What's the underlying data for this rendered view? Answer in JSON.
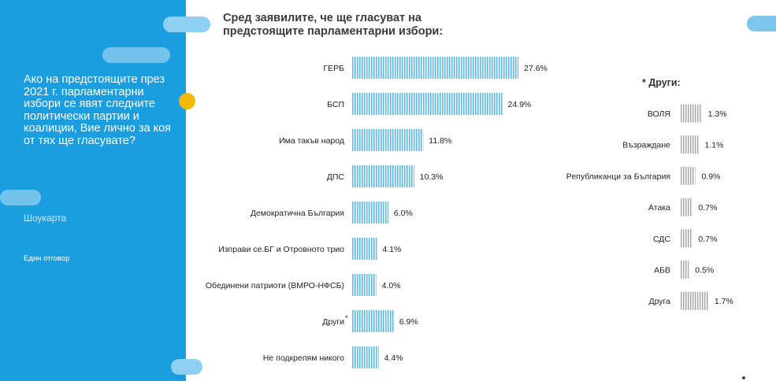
{
  "sidebar": {
    "question": "Ако на предстоящите през 2021 г. парламентарни избори се явят следните политически партии и коалиции, Вие лично за коя от тях ще гласувате?",
    "method": "Шоукарта",
    "answer_type": "Един отговор"
  },
  "colors": {
    "sidebar": "#1a9ee0",
    "main_bars": "#5bbbe9",
    "others_bars": "#a8a8a8",
    "accent_dot": "#f5b800"
  },
  "chart_data": [
    {
      "type": "bar",
      "orientation": "horizontal",
      "title": "Сред заявилите, че ще гласуват на предстоящите парламентарни избори:",
      "categories": [
        "ГЕРБ",
        "БСП",
        "Има такъв народ",
        "ДПС",
        "Демократична България",
        "Изправи се.БГ и Отровното трио",
        "Обединени патриоти (ВМРО-НФСБ)",
        "Други",
        "Не подкрепям никого"
      ],
      "values": [
        27.6,
        24.9,
        11.8,
        10.3,
        6.0,
        4.1,
        4.0,
        6.9,
        4.4
      ],
      "value_labels": [
        "27.6%",
        "24.9%",
        "11.8%",
        "10.3%",
        "6.0%",
        "4.1%",
        "4.0%",
        "6.9%",
        "4.4%"
      ],
      "category_marks": [
        "",
        "",
        "",
        "",
        "",
        "",
        "",
        "*",
        ""
      ],
      "unit": "%",
      "grid": false,
      "legend": "none"
    },
    {
      "type": "bar",
      "orientation": "horizontal",
      "title": "* Други:",
      "categories": [
        "ВОЛЯ",
        "Възраждане",
        "Републиканци за България",
        "Атака",
        "СДС",
        "АБВ",
        "Друга"
      ],
      "values": [
        1.3,
        1.1,
        0.9,
        0.7,
        0.7,
        0.5,
        1.7
      ],
      "value_labels": [
        "1.3%",
        "1.1%",
        "0.9%",
        "0.7%",
        "0.7%",
        "0.5%",
        "1.7%"
      ],
      "unit": "%",
      "grid": false,
      "legend": "none"
    }
  ]
}
